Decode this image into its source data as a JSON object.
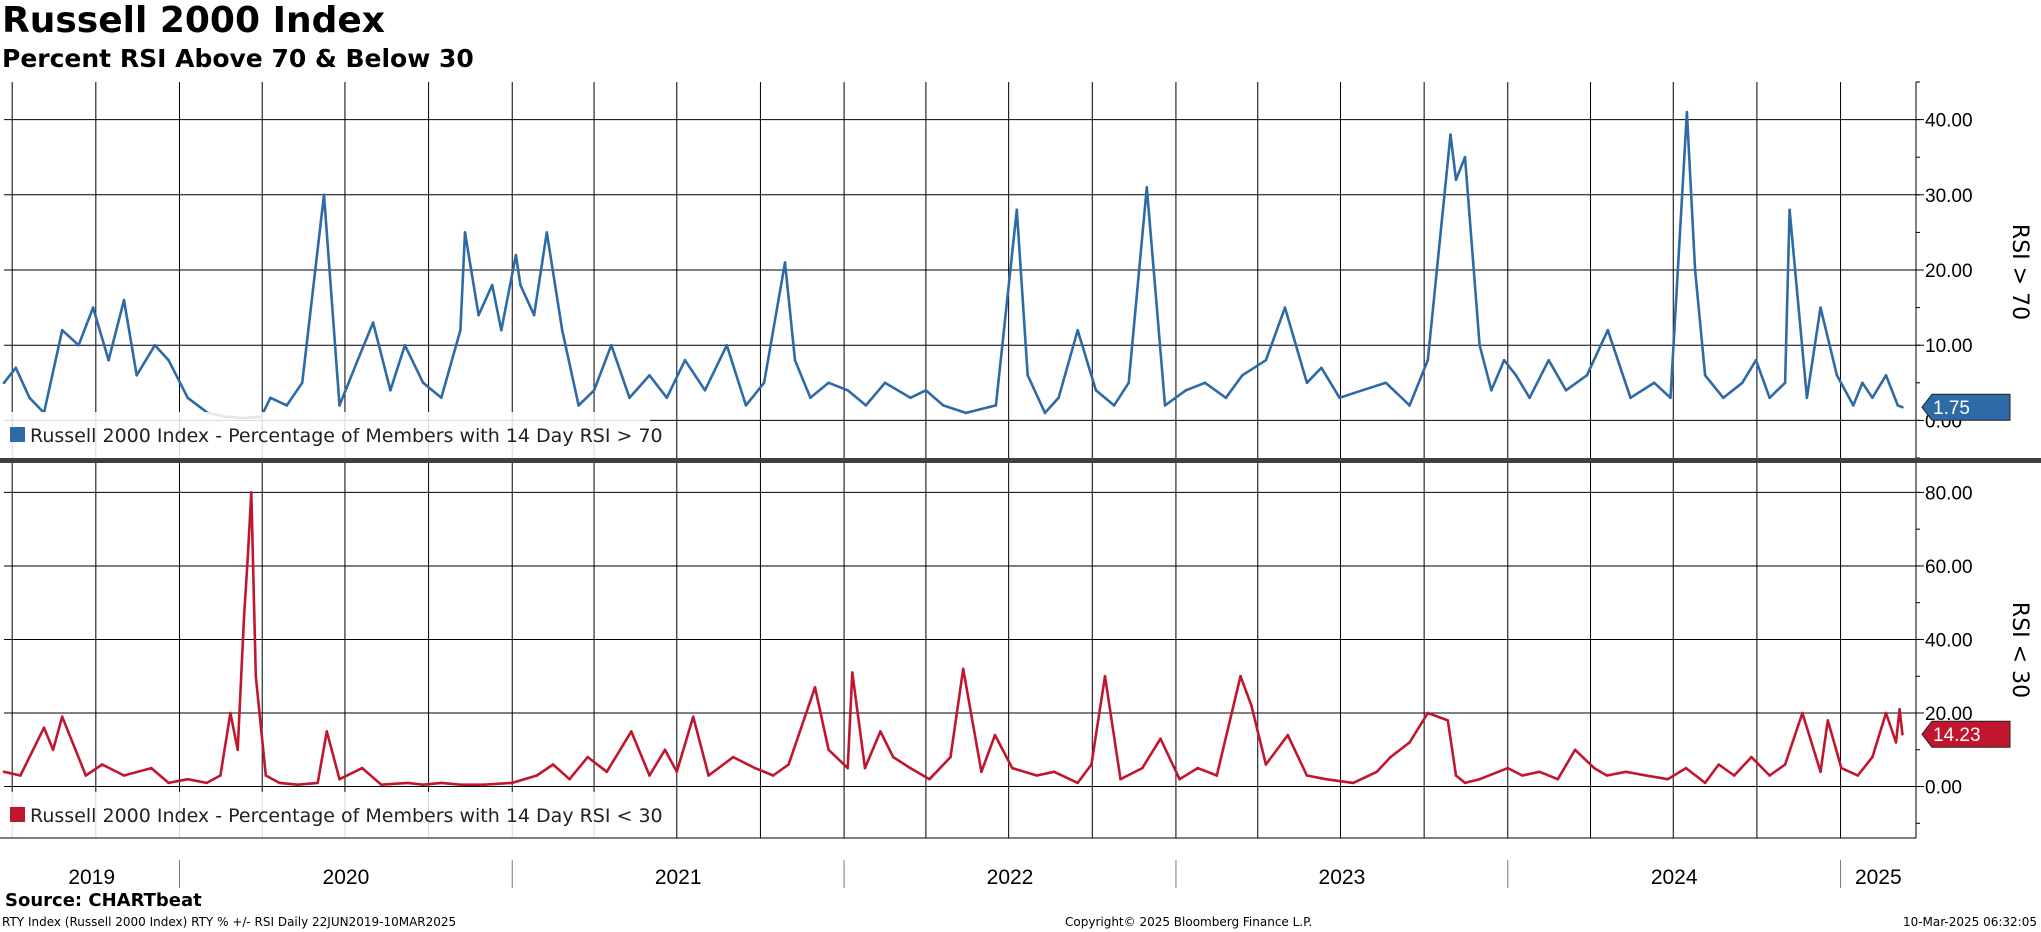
{
  "title": "Russell 2000 Index",
  "subtitle": "Percent RSI Above 70 & Below 30",
  "source": "Source: CHARTbeat",
  "footer": {
    "left": "RTY Index (Russell 2000 Index) RTY % +/- RSI  Daily 22JUN2019-10MAR2025",
    "center": "Copyright© 2025 Bloomberg Finance L.P.",
    "right": "10-Mar-2025 06:32:05"
  },
  "colors": {
    "upper": "#2e6aa6",
    "lower": "#c0172f",
    "grid": "#000000",
    "divider": "#404040"
  },
  "chart_data": [
    {
      "type": "line",
      "panel": "upper",
      "ylabel": "RSI > 70",
      "ylim": [
        -5,
        45
      ],
      "yticks": [
        {
          "v": 0,
          "label": "0.00"
        },
        {
          "v": 10,
          "label": "10.00"
        },
        {
          "v": 20,
          "label": "20.00"
        },
        {
          "v": 30,
          "label": "30.00"
        },
        {
          "v": 40,
          "label": "40.00"
        }
      ],
      "last_value_label": "1.75",
      "series": [
        {
          "name": "Russell 2000 Index - Percentage of Members with 14 Day RSI > 70",
          "x": [
            "2019-06-22",
            "2019-07-05",
            "2019-07-20",
            "2019-08-05",
            "2019-08-25",
            "2019-09-12",
            "2019-09-28",
            "2019-10-15",
            "2019-11-01",
            "2019-11-15",
            "2019-12-05",
            "2019-12-20",
            "2020-01-10",
            "2020-02-01",
            "2020-02-20",
            "2020-03-10",
            "2020-03-31",
            "2020-04-10",
            "2020-04-28",
            "2020-05-15",
            "2020-06-08",
            "2020-06-25",
            "2020-07-15",
            "2020-08-01",
            "2020-08-20",
            "2020-09-05",
            "2020-09-25",
            "2020-10-15",
            "2020-11-05",
            "2020-11-10",
            "2020-11-25",
            "2020-12-10",
            "2020-12-20",
            "2021-01-05",
            "2021-01-10",
            "2021-01-25",
            "2021-02-08",
            "2021-02-25",
            "2021-03-15",
            "2021-04-01",
            "2021-04-20",
            "2021-05-10",
            "2021-06-01",
            "2021-06-20",
            "2021-07-10",
            "2021-08-01",
            "2021-08-25",
            "2021-09-15",
            "2021-10-05",
            "2021-10-28",
            "2021-11-08",
            "2021-11-25",
            "2021-12-15",
            "2022-01-05",
            "2022-01-25",
            "2022-02-15",
            "2022-03-15",
            "2022-04-01",
            "2022-04-20",
            "2022-05-15",
            "2022-06-17",
            "2022-07-10",
            "2022-07-22",
            "2022-08-10",
            "2022-08-25",
            "2022-09-15",
            "2022-10-05",
            "2022-10-25",
            "2022-11-10",
            "2022-11-30",
            "2022-12-20",
            "2023-01-12",
            "2023-02-02",
            "2023-02-25",
            "2023-03-15",
            "2023-04-10",
            "2023-05-01",
            "2023-05-25",
            "2023-06-10",
            "2023-06-30",
            "2023-07-25",
            "2023-08-20",
            "2023-09-15",
            "2023-10-05",
            "2023-10-30",
            "2023-11-05",
            "2023-11-15",
            "2023-12-01",
            "2023-12-14",
            "2023-12-28",
            "2024-01-10",
            "2024-01-25",
            "2024-02-15",
            "2024-03-05",
            "2024-03-28",
            "2024-04-20",
            "2024-05-15",
            "2024-06-10",
            "2024-06-28",
            "2024-07-16",
            "2024-07-25",
            "2024-08-05",
            "2024-08-25",
            "2024-09-15",
            "2024-09-30",
            "2024-10-15",
            "2024-11-01",
            "2024-11-06",
            "2024-11-12",
            "2024-11-25",
            "2024-12-10",
            "2024-12-28",
            "2025-01-15",
            "2025-01-25",
            "2025-02-05",
            "2025-02-20",
            "2025-03-05",
            "2025-03-10"
          ],
          "y": [
            5,
            7,
            3,
            1,
            12,
            10,
            15,
            8,
            16,
            6,
            10,
            8,
            3,
            1,
            0.5,
            0.3,
            0.5,
            3,
            2,
            5,
            30,
            2,
            8,
            13,
            4,
            10,
            5,
            3,
            12,
            25,
            14,
            18,
            12,
            22,
            18,
            14,
            25,
            12,
            2,
            4,
            10,
            3,
            6,
            3,
            8,
            4,
            10,
            2,
            5,
            21,
            8,
            3,
            5,
            4,
            2,
            5,
            3,
            4,
            2,
            1,
            2,
            28,
            6,
            1,
            3,
            12,
            4,
            2,
            5,
            31,
            2,
            4,
            5,
            3,
            6,
            8,
            15,
            5,
            7,
            3,
            4,
            5,
            2,
            8,
            38,
            32,
            35,
            10,
            4,
            8,
            6,
            3,
            8,
            4,
            6,
            12,
            3,
            5,
            3,
            41,
            20,
            6,
            3,
            5,
            8,
            3,
            5,
            28,
            20,
            3,
            15,
            6,
            2,
            5,
            3,
            6,
            2,
            1.75
          ]
        }
      ],
      "legend": "Russell 2000 Index - Percentage of Members with 14 Day RSI > 70"
    },
    {
      "type": "line",
      "panel": "lower",
      "ylabel": "RSI < 30",
      "ylim": [
        -14,
        88
      ],
      "yticks": [
        {
          "v": 0,
          "label": "0.00"
        },
        {
          "v": 20,
          "label": "20.00"
        },
        {
          "v": 40,
          "label": "40.00"
        },
        {
          "v": 60,
          "label": "60.00"
        },
        {
          "v": 80,
          "label": "80.00"
        }
      ],
      "last_value_label": "14.23",
      "series": [
        {
          "name": "Russell 2000 Index - Percentage of Members with 14 Day RSI < 30",
          "x": [
            "2019-06-22",
            "2019-07-10",
            "2019-08-05",
            "2019-08-15",
            "2019-08-25",
            "2019-09-20",
            "2019-10-08",
            "2019-11-01",
            "2019-12-01",
            "2019-12-20",
            "2020-01-10",
            "2020-01-31",
            "2020-02-15",
            "2020-02-26",
            "2020-03-05",
            "2020-03-12",
            "2020-03-16",
            "2020-03-20",
            "2020-03-25",
            "2020-04-05",
            "2020-04-20",
            "2020-05-10",
            "2020-06-01",
            "2020-06-11",
            "2020-06-25",
            "2020-07-20",
            "2020-08-10",
            "2020-09-08",
            "2020-09-25",
            "2020-10-15",
            "2020-11-05",
            "2020-12-01",
            "2021-01-01",
            "2021-01-28",
            "2021-02-15",
            "2021-03-05",
            "2021-03-25",
            "2021-04-15",
            "2021-05-12",
            "2021-06-01",
            "2021-06-18",
            "2021-07-01",
            "2021-07-19",
            "2021-08-05",
            "2021-09-01",
            "2021-09-25",
            "2021-10-15",
            "2021-11-01",
            "2021-11-30",
            "2021-12-15",
            "2022-01-05",
            "2022-01-10",
            "2022-01-24",
            "2022-02-10",
            "2022-02-24",
            "2022-03-15",
            "2022-04-05",
            "2022-04-28",
            "2022-05-12",
            "2022-06-01",
            "2022-06-16",
            "2022-07-05",
            "2022-08-01",
            "2022-08-20",
            "2022-09-15",
            "2022-09-30",
            "2022-10-15",
            "2022-11-01",
            "2022-11-25",
            "2022-12-15",
            "2023-01-05",
            "2023-01-25",
            "2023-02-15",
            "2023-03-13",
            "2023-03-25",
            "2023-04-10",
            "2023-05-04",
            "2023-05-25",
            "2023-06-15",
            "2023-07-15",
            "2023-08-10",
            "2023-08-25",
            "2023-09-15",
            "2023-10-05",
            "2023-10-27",
            "2023-11-05",
            "2023-11-15",
            "2023-12-01",
            "2024-01-01",
            "2024-01-17",
            "2024-02-05",
            "2024-02-25",
            "2024-03-15",
            "2024-04-05",
            "2024-04-19",
            "2024-05-10",
            "2024-06-01",
            "2024-06-25",
            "2024-07-15",
            "2024-08-05",
            "2024-08-20",
            "2024-09-06",
            "2024-09-25",
            "2024-10-15",
            "2024-11-01",
            "2024-11-20",
            "2024-12-10",
            "2024-12-18",
            "2025-01-02",
            "2025-01-20",
            "2025-02-05",
            "2025-02-20",
            "2025-03-03",
            "2025-03-07",
            "2025-03-10"
          ],
          "y": [
            4,
            3,
            16,
            10,
            19,
            3,
            6,
            3,
            5,
            1,
            2,
            1,
            3,
            20,
            10,
            46,
            62,
            80,
            30,
            3,
            1,
            0.5,
            1,
            15,
            2,
            5,
            0.5,
            1,
            0.5,
            1,
            0.5,
            0.5,
            1,
            3,
            6,
            2,
            8,
            4,
            15,
            3,
            10,
            4,
            19,
            3,
            8,
            5,
            3,
            6,
            27,
            10,
            5,
            31,
            5,
            15,
            8,
            5,
            2,
            8,
            32,
            4,
            14,
            5,
            3,
            4,
            1,
            6,
            30,
            2,
            5,
            13,
            2,
            5,
            3,
            30,
            22,
            6,
            14,
            3,
            2,
            1,
            4,
            8,
            12,
            20,
            18,
            3,
            1,
            2,
            5,
            3,
            4,
            2,
            10,
            5,
            3,
            4,
            3,
            2,
            5,
            1,
            6,
            3,
            8,
            3,
            6,
            20,
            4,
            18,
            5,
            3,
            8,
            20,
            12,
            21,
            14.23
          ]
        }
      ],
      "legend": "Russell 2000 Index - Percentage of Members with 14 Day RSI < 30"
    }
  ],
  "x_axis": {
    "xlim": [
      "2019-06-22",
      "2025-03-25"
    ],
    "year_labels": [
      "2019",
      "2020",
      "2021",
      "2022",
      "2023",
      "2024",
      "2025"
    ]
  }
}
